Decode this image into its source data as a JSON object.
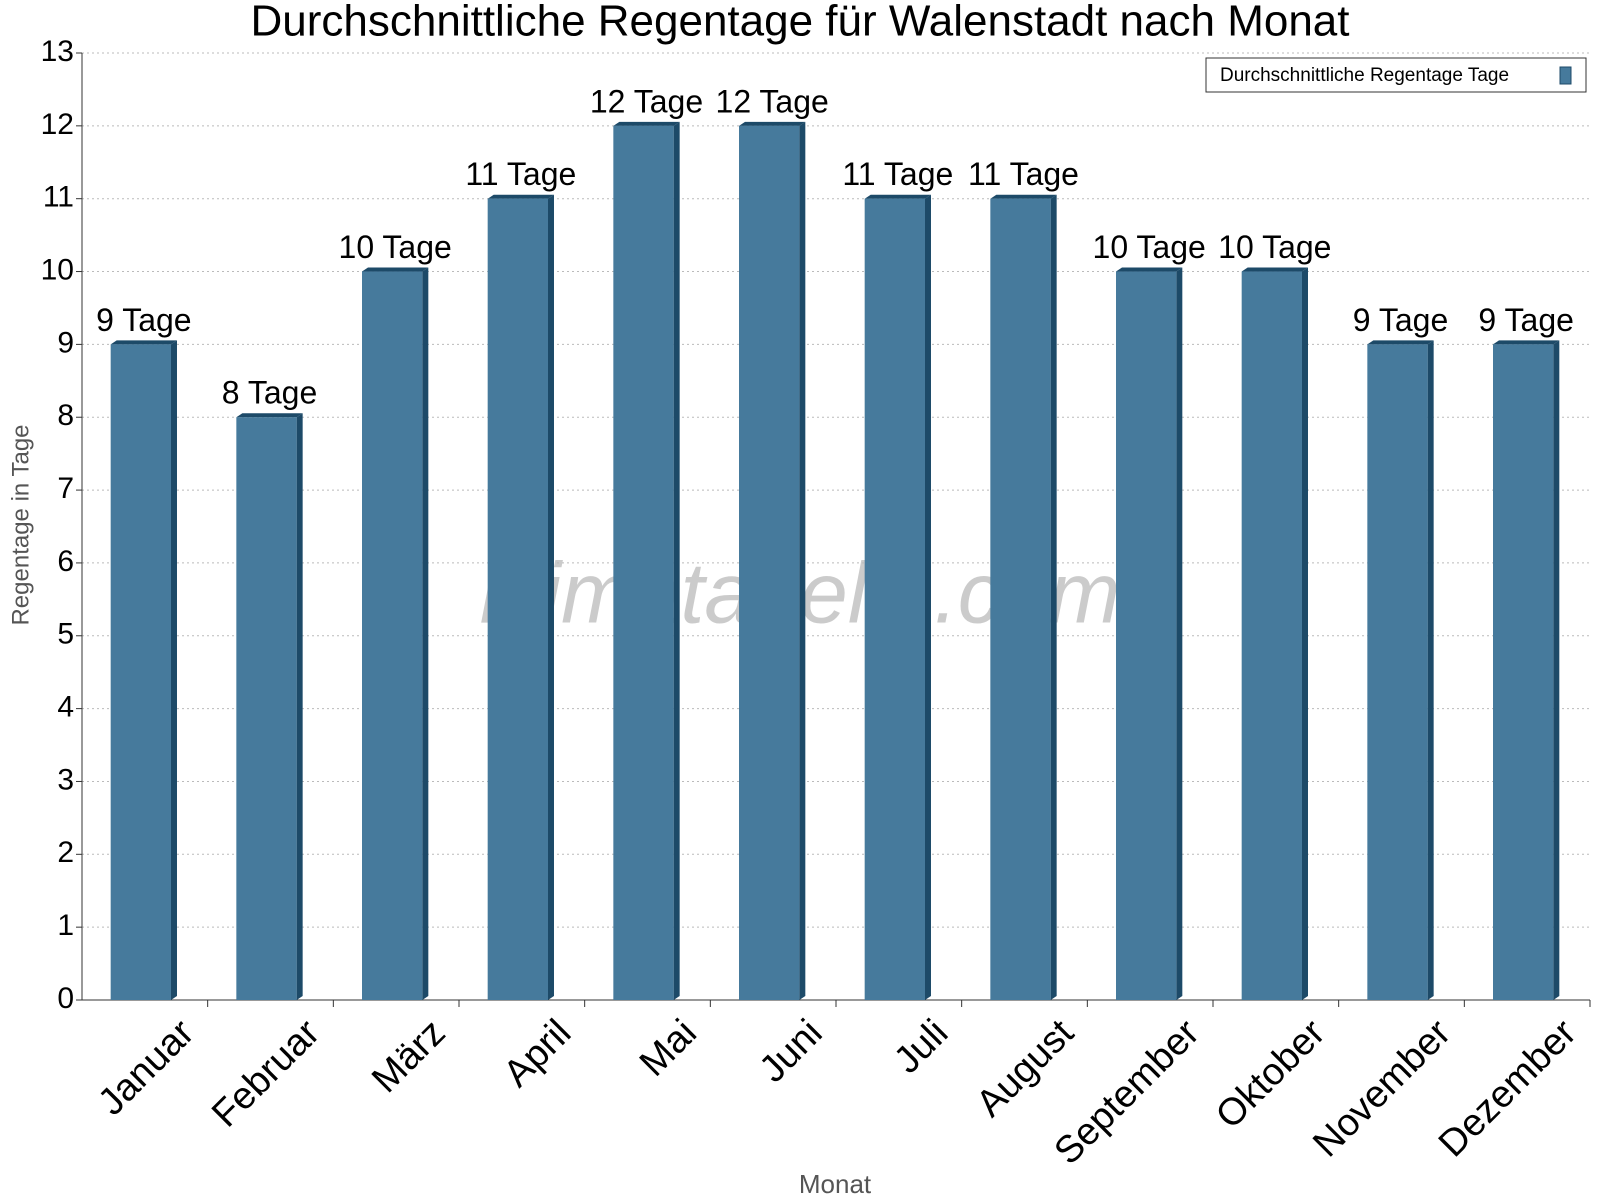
{
  "chart_data": {
    "type": "bar",
    "title": "Durchschnittliche Regentage für Walenstadt nach Monat",
    "x_label": "Monat",
    "y_label": "Regentage in Tage",
    "watermark": "klimatabelle.com",
    "categories": [
      "Januar",
      "Februar",
      "März",
      "April",
      "Mai",
      "Juni",
      "Juli",
      "August",
      "September",
      "Oktober",
      "November",
      "Dezember"
    ],
    "series": [
      {
        "name": "Durchschnittliche Regentage Tage",
        "color": "#467a9c",
        "values": [
          9,
          8,
          10,
          11,
          12,
          12,
          11,
          11,
          10,
          10,
          9,
          9
        ],
        "value_labels": [
          "9 Tage",
          "8 Tage",
          "10 Tage",
          "11 Tage",
          "12 Tage",
          "12 Tage",
          "11 Tage",
          "11 Tage",
          "10 Tage",
          "10 Tage",
          "9 Tage",
          "9 Tage"
        ]
      }
    ],
    "ylim": [
      0,
      13
    ],
    "yticks": [
      0,
      1,
      2,
      3,
      4,
      5,
      6,
      7,
      8,
      9,
      10,
      11,
      12,
      13
    ],
    "grid": true,
    "legend": "top-right"
  }
}
